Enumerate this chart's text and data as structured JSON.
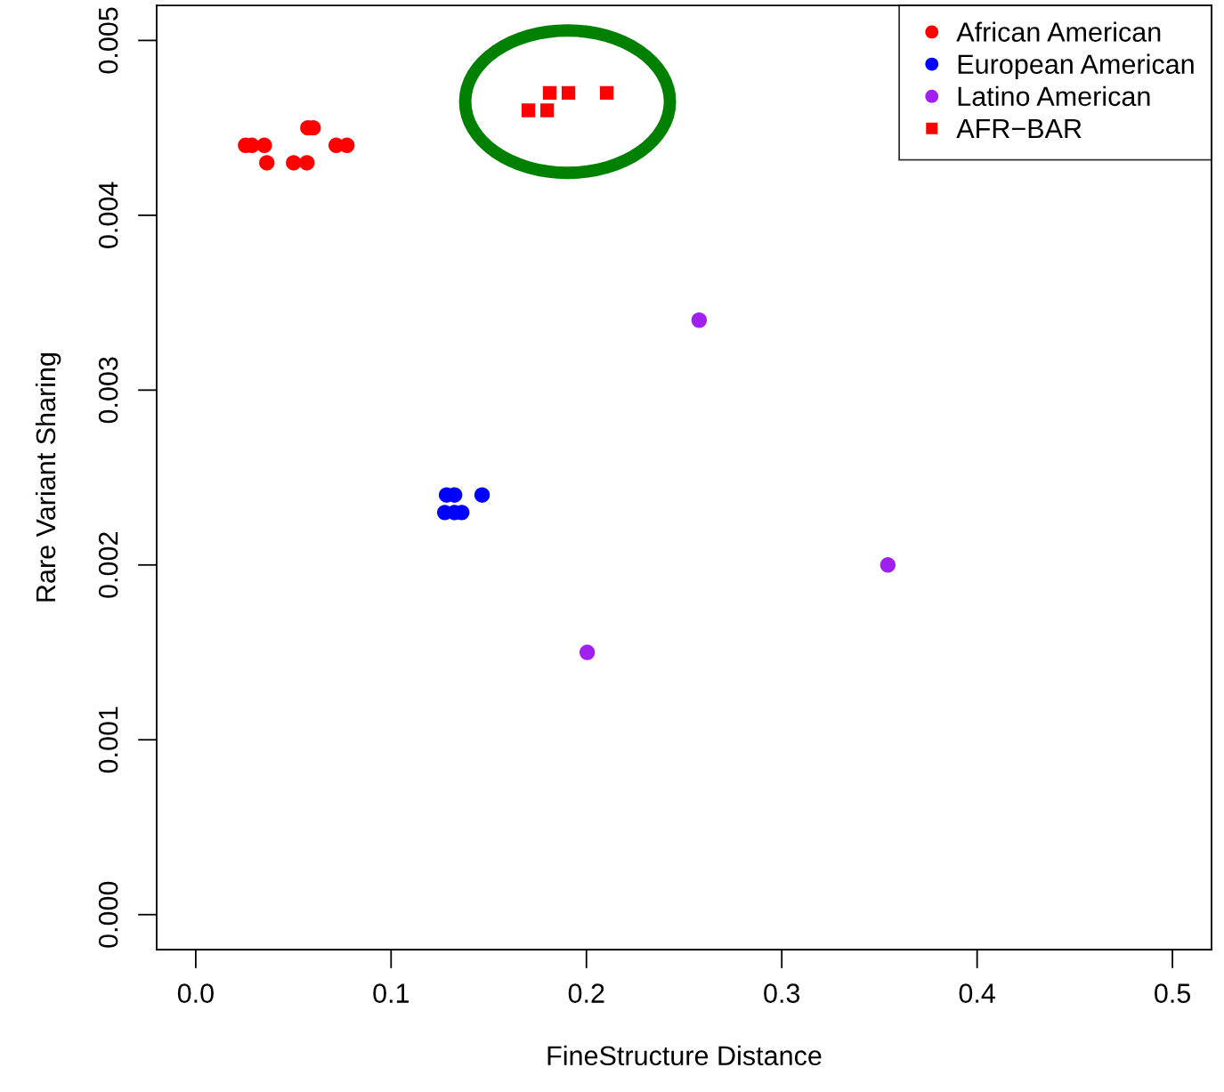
{
  "chart_data": {
    "type": "scatter",
    "xlabel": "FineStructure Distance",
    "ylabel": "Rare Variant Sharing",
    "xlim": [
      -0.02,
      0.52
    ],
    "ylim": [
      -0.0002,
      0.0052
    ],
    "xticks": [
      {
        "value": 0,
        "label": "0.0"
      },
      0.1,
      0.2,
      0.3,
      0.4,
      0.5
    ],
    "yticks": [
      {
        "value": 0,
        "label": "0.000"
      },
      0.001,
      0.002,
      0.003,
      0.004,
      0.005
    ],
    "grid": false,
    "legend": "top right",
    "series": [
      {
        "name": "African American",
        "color": "#ff0000",
        "marker": "circle",
        "x": [
          0.0255,
          0.0287,
          0.0351,
          0.0364,
          0.0501,
          0.0569,
          0.0574,
          0.0601,
          0.0719,
          0.0774
        ],
        "values": [
          0.0044,
          0.0044,
          0.0044,
          0.0043,
          0.0043,
          0.0043,
          0.0045,
          0.0045,
          0.0044,
          0.0044
        ]
      },
      {
        "name": "European American",
        "color": "#0000ff",
        "marker": "circle",
        "x": [
          0.1284,
          0.1325,
          0.1466,
          0.1275,
          0.1325,
          0.1362
        ],
        "values": [
          0.0024,
          0.0024,
          0.0024,
          0.0023,
          0.0023,
          0.0023
        ]
      },
      {
        "name": "Latino American",
        "color": "#a020f0",
        "marker": "circle",
        "x": [
          0.2577,
          0.3543,
          0.2004
        ],
        "values": [
          0.0034,
          0.002,
          0.0015
        ]
      },
      {
        "name": "AFR−BAR",
        "color": "#ff0000",
        "marker": "square",
        "x": [
          0.1703,
          0.1799,
          0.1812,
          0.1908,
          0.2104
        ],
        "values": [
          0.0046,
          0.0046,
          0.0047,
          0.0047,
          0.0047
        ]
      }
    ]
  }
}
